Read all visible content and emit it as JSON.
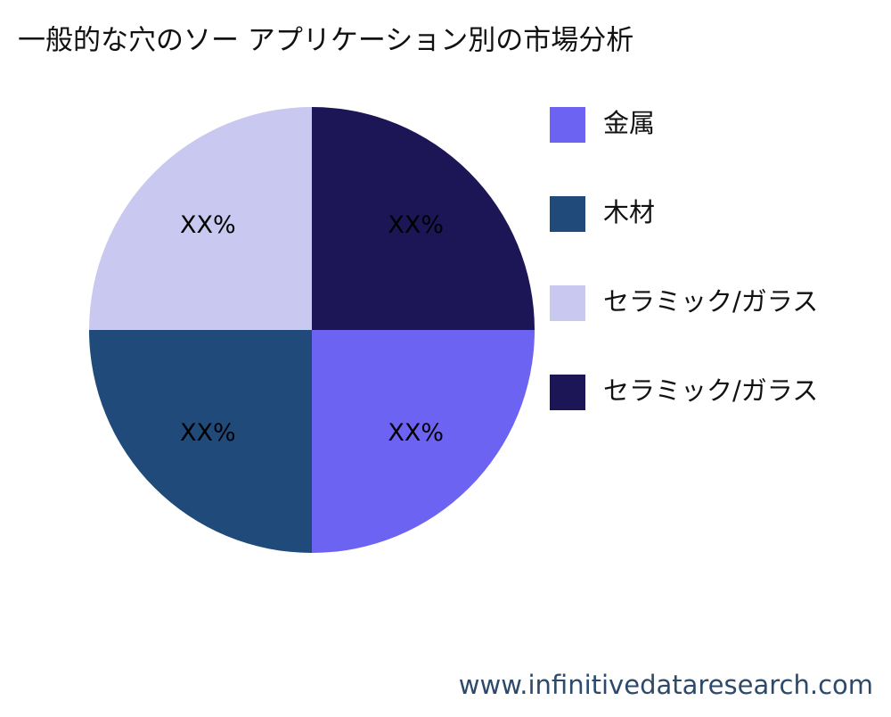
{
  "chart_data": {
    "type": "pie",
    "title": "一般的な穴のソー アプリケーション別の市場分析",
    "categories": [
      "金属",
      "木材",
      "セラミック/ガラス",
      "セラミック/ガラス"
    ],
    "values": [
      25,
      25,
      25,
      25
    ],
    "value_labels": [
      "XX%",
      "XX%",
      "XX%",
      "XX%"
    ],
    "colors": [
      "#6c63f2",
      "#1f4a7a",
      "#c8c8f0",
      "#1c1656"
    ],
    "legend": "right"
  },
  "watermark": "www.infinitivedataresearch.com"
}
